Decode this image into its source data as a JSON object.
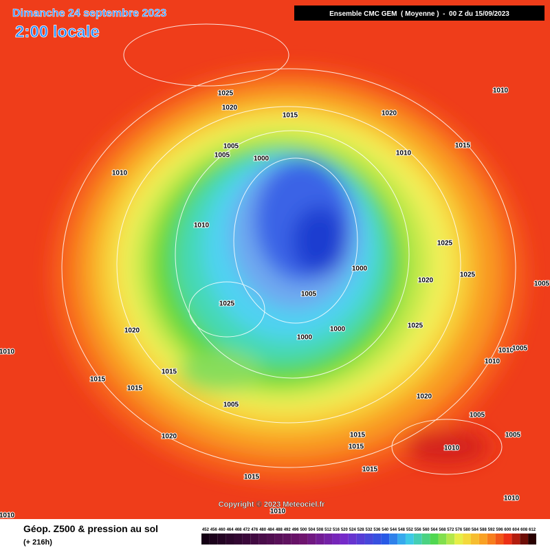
{
  "header": {
    "date": "Dimanche 24 septembre 2023",
    "time": "2:00 locale",
    "run": "Ensemble CMC GEM  ( Moyenne )  -  00 Z du 15/09/2023"
  },
  "isobars": [
    "1025",
    "1020",
    "1015",
    "1020",
    "1010",
    "1015",
    "1010",
    "1005",
    "1005",
    "1000",
    "1010",
    "1010",
    "1025",
    "1025",
    "1020",
    "1000",
    "1005",
    "1025",
    "1020",
    "1000",
    "1000",
    "1025",
    "1010",
    "1015",
    "1015",
    "1015",
    "1005",
    "1020",
    "1010",
    "1010",
    "1005",
    "1005",
    "1015",
    "1015",
    "1010",
    "1005",
    "1005",
    "1020",
    "1015",
    "1015",
    "1010",
    "1010",
    "1010"
  ],
  "copyright": "Copyright © 2023 Meteociel.fr",
  "footer": {
    "title": "Géop. Z500 & pression au sol",
    "lead": "(+ 216h)"
  },
  "scale": [
    452,
    456,
    460,
    464,
    468,
    472,
    476,
    480,
    484,
    488,
    492,
    496,
    500,
    504,
    508,
    512,
    516,
    520,
    524,
    528,
    532,
    536,
    540,
    544,
    548,
    552,
    556,
    560,
    564,
    568,
    572,
    576,
    580,
    584,
    588,
    592,
    596,
    600,
    604,
    608,
    612
  ]
}
